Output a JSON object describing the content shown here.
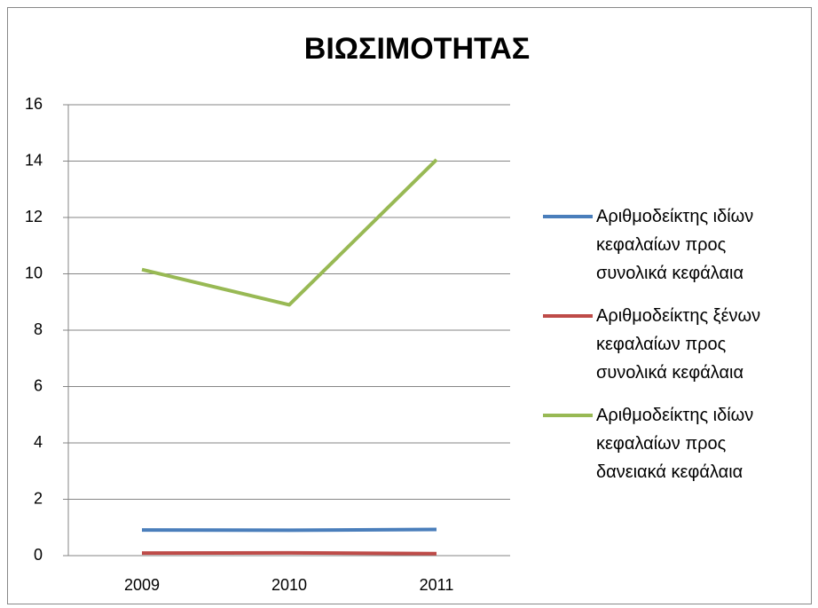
{
  "chart_data": {
    "type": "line",
    "title": "ΒΙΩΣΙΜΟΤΗΤΑΣ",
    "categories": [
      "2009",
      "2010",
      "2011"
    ],
    "series": [
      {
        "name": "Αριθμοδείκτης ιδίων κεφαλαίων προς συνολικά κεφάλαια",
        "color": "#4a7ebb",
        "values": [
          0.91,
          0.9,
          0.93
        ]
      },
      {
        "name": "Αριθμοδείκτης ξένων κεφαλαίων προς συνολικά κεφάλαια",
        "color": "#be4b48",
        "values": [
          0.09,
          0.1,
          0.07
        ]
      },
      {
        "name": "Αριθμοδείκτης ιδίων κεφαλαίων προς δανειακά κεφάλαια",
        "color": "#98b954",
        "values": [
          10.15,
          8.9,
          14.05
        ]
      }
    ],
    "ylim": [
      0,
      16
    ],
    "yticks": [
      0,
      2,
      4,
      6,
      8,
      10,
      12,
      14,
      16
    ],
    "grid": true,
    "legend": "right"
  }
}
